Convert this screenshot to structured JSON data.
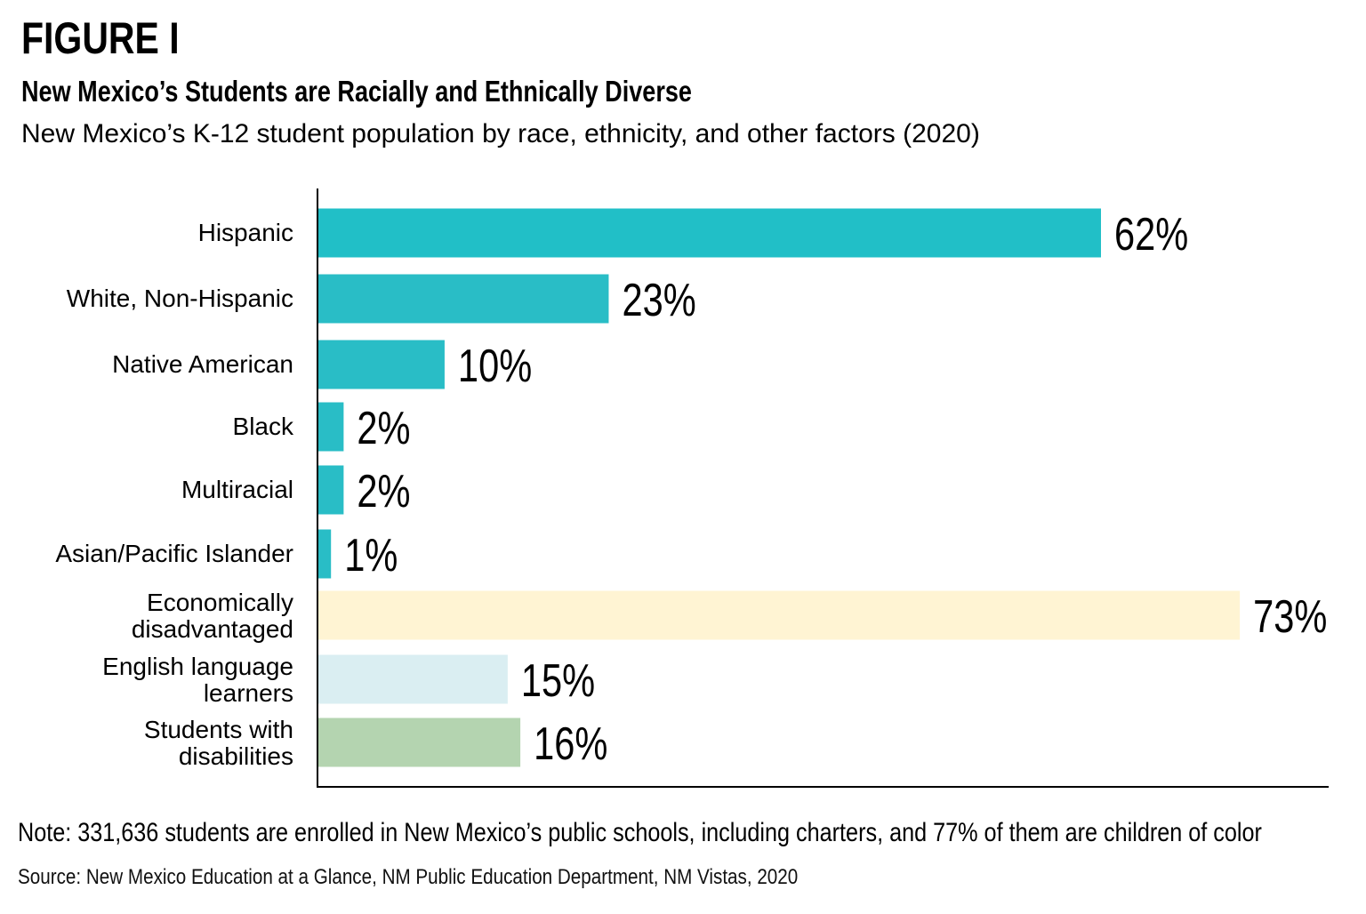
{
  "figure_label": "FIGURE I",
  "chart_data": {
    "type": "bar",
    "orientation": "horizontal",
    "title": "New Mexico’s Students are Racially and Ethnically Diverse",
    "subtitle": "New Mexico’s K-12 student population by race, ethnicity, and other factors (2020)",
    "categories": [
      "Hispanic",
      "White, Non-Hispanic",
      "Native American",
      "Black",
      "Multiracial",
      "Asian/Pacific Islander",
      "Economically disadvantaged",
      "English language learners",
      "Students with disabilities"
    ],
    "category_lines": [
      [
        "Hispanic"
      ],
      [
        "White, Non-Hispanic"
      ],
      [
        "Native American"
      ],
      [
        "Black"
      ],
      [
        "Multiracial"
      ],
      [
        "Asian/Pacific Islander"
      ],
      [
        "Economically",
        "disadvantaged"
      ],
      [
        "English language",
        "learners"
      ],
      [
        "Students with",
        "disabilities"
      ]
    ],
    "values": [
      62,
      23,
      10,
      2,
      2,
      1,
      73,
      15,
      16
    ],
    "data_labels": [
      "62%",
      "23%",
      "10%",
      "2%",
      "2%",
      "1%",
      "73%",
      "15%",
      "16%"
    ],
    "colors": [
      "#21bfc7",
      "#29bdc6",
      "#29bdc6",
      "#29bdc6",
      "#29bdc6",
      "#29bdc6",
      "#fff4d3",
      "#daeef2",
      "#b4d4b0"
    ],
    "unit": "%",
    "xlim": [
      0,
      80
    ],
    "grid": false,
    "legend": "none"
  },
  "note": "Note: 331,636 students are enrolled in New Mexico’s public schools, including charters, and 77% of them are children of color",
  "source": "Source: New Mexico Education at a Glance, NM Public Education Department, NM Vistas, 2020"
}
